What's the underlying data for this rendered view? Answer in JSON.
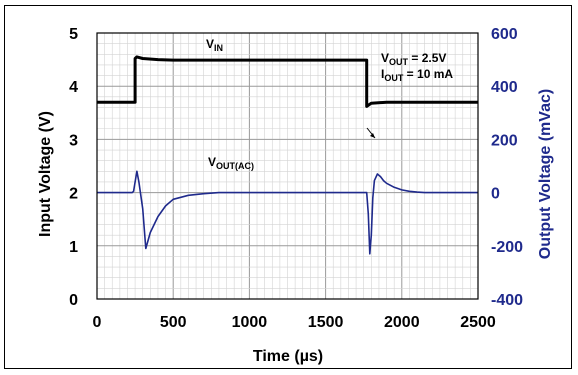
{
  "chart_data": {
    "type": "line",
    "title": "",
    "xlabel": "Time (µs)",
    "ylabel_left": "Input Voltage (V)",
    "ylabel_right": "Output Voltage (mVac)",
    "xlim": [
      0,
      2500
    ],
    "ylim_left": [
      0,
      5
    ],
    "ylim_right": [
      -400,
      600
    ],
    "x_ticks": [
      "0",
      "500",
      "1000",
      "1500",
      "2000",
      "2500"
    ],
    "y_left_ticks": [
      "0",
      "1",
      "2",
      "3",
      "4",
      "5"
    ],
    "y_right_ticks": [
      "-400",
      "-200",
      "0",
      "200",
      "400",
      "600"
    ],
    "grid": true,
    "series": [
      {
        "name": "VIN",
        "axis": "left",
        "color": "#000000",
        "x": [
          0,
          250,
          250,
          262,
          300,
          400,
          500,
          1000,
          1500,
          1770,
          1770,
          1800,
          1900,
          2000,
          2500
        ],
        "y": [
          3.7,
          3.7,
          4.52,
          4.55,
          4.52,
          4.5,
          4.49,
          4.49,
          4.49,
          4.49,
          3.62,
          3.68,
          3.7,
          3.7,
          3.7
        ]
      },
      {
        "name": "VOUT(AC)",
        "axis": "right",
        "color": "#1f2a8c",
        "x": [
          0,
          230,
          240,
          250,
          262,
          275,
          300,
          320,
          350,
          400,
          450,
          500,
          600,
          700,
          800,
          1000,
          1500,
          1750,
          1770,
          1780,
          1790,
          1800,
          1810,
          1820,
          1840,
          1860,
          1880,
          1900,
          1950,
          2000,
          2050,
          2100,
          2150,
          2200,
          2300,
          2500
        ],
        "y": [
          0,
          0,
          5,
          40,
          80,
          40,
          -60,
          -210,
          -150,
          -90,
          -50,
          -25,
          -10,
          -4,
          0,
          0,
          0,
          0,
          0,
          -80,
          -230,
          -160,
          -20,
          45,
          70,
          60,
          45,
          35,
          20,
          10,
          5,
          2,
          0,
          0,
          0,
          0
        ]
      }
    ],
    "annotations": [
      {
        "label": "VIN",
        "base": "V",
        "sub": "IN"
      },
      {
        "label": "VOUT(AC)",
        "base": "V",
        "sub": "OUT(AC)"
      },
      {
        "label": "VOUT = 2.5V",
        "base": "V",
        "sub": "OUT",
        "rest": " = 2.5V"
      },
      {
        "label": "IOUT = 10 mA",
        "base": "I",
        "sub": "OUT",
        "rest": " = 10 mA"
      }
    ]
  }
}
